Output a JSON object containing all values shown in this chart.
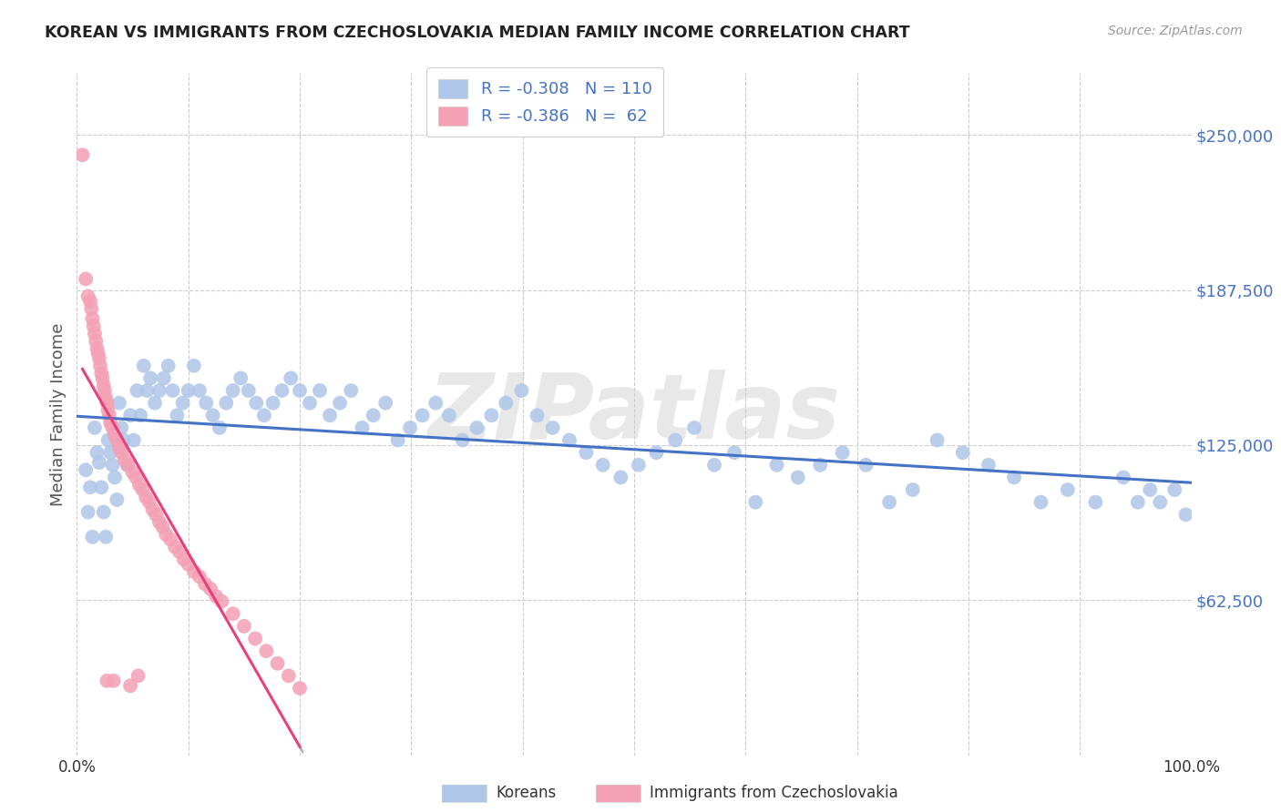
{
  "title": "KOREAN VS IMMIGRANTS FROM CZECHOSLOVAKIA MEDIAN FAMILY INCOME CORRELATION CHART",
  "source": "Source: ZipAtlas.com",
  "ylabel": "Median Family Income",
  "ytick_labels": [
    "$62,500",
    "$125,000",
    "$187,500",
    "$250,000"
  ],
  "ytick_values": [
    62500,
    125000,
    187500,
    250000
  ],
  "ymin": 0,
  "ymax": 275000,
  "xmin": 0.0,
  "xmax": 1.0,
  "watermark": "ZIPatlas",
  "korean_color": "#aec6e8",
  "czech_color": "#f4a0b5",
  "korean_line_color": "#4472c4",
  "czech_line_color": "#e8407a",
  "background_color": "#ffffff",
  "grid_color": "#cccccc",
  "title_color": "#222222",
  "axis_label_color": "#555555",
  "ytick_color": "#4472c4",
  "korean_x": [
    0.008,
    0.01,
    0.012,
    0.014,
    0.016,
    0.018,
    0.02,
    0.022,
    0.024,
    0.026,
    0.028,
    0.03,
    0.032,
    0.034,
    0.036,
    0.038,
    0.04,
    0.042,
    0.045,
    0.048,
    0.051,
    0.054,
    0.057,
    0.06,
    0.063,
    0.066,
    0.07,
    0.074,
    0.078,
    0.082,
    0.086,
    0.09,
    0.095,
    0.1,
    0.105,
    0.11,
    0.116,
    0.122,
    0.128,
    0.134,
    0.14,
    0.147,
    0.154,
    0.161,
    0.168,
    0.176,
    0.184,
    0.192,
    0.2,
    0.209,
    0.218,
    0.227,
    0.236,
    0.246,
    0.256,
    0.266,
    0.277,
    0.288,
    0.299,
    0.31,
    0.322,
    0.334,
    0.346,
    0.359,
    0.372,
    0.385,
    0.399,
    0.413,
    0.427,
    0.442,
    0.457,
    0.472,
    0.488,
    0.504,
    0.52,
    0.537,
    0.554,
    0.572,
    0.59,
    0.609,
    0.628,
    0.647,
    0.667,
    0.687,
    0.708,
    0.729,
    0.75,
    0.772,
    0.795,
    0.818,
    0.841,
    0.865,
    0.889,
    0.914,
    0.939,
    0.952,
    0.963,
    0.972,
    0.985,
    0.995
  ],
  "korean_y": [
    115000,
    98000,
    108000,
    88000,
    132000,
    122000,
    118000,
    108000,
    98000,
    88000,
    127000,
    122000,
    117000,
    112000,
    103000,
    142000,
    132000,
    127000,
    117000,
    137000,
    127000,
    147000,
    137000,
    157000,
    147000,
    152000,
    142000,
    147000,
    152000,
    157000,
    147000,
    137000,
    142000,
    147000,
    157000,
    147000,
    142000,
    137000,
    132000,
    142000,
    147000,
    152000,
    147000,
    142000,
    137000,
    142000,
    147000,
    152000,
    147000,
    142000,
    147000,
    137000,
    142000,
    147000,
    132000,
    137000,
    142000,
    127000,
    132000,
    137000,
    142000,
    137000,
    127000,
    132000,
    137000,
    142000,
    147000,
    137000,
    132000,
    127000,
    122000,
    117000,
    112000,
    117000,
    122000,
    127000,
    132000,
    117000,
    122000,
    102000,
    117000,
    112000,
    117000,
    122000,
    117000,
    102000,
    107000,
    127000,
    122000,
    117000,
    112000,
    102000,
    107000,
    102000,
    112000,
    102000,
    107000,
    102000,
    107000,
    97000
  ],
  "czech_x": [
    0.005,
    0.008,
    0.01,
    0.012,
    0.013,
    0.014,
    0.015,
    0.016,
    0.017,
    0.018,
    0.019,
    0.02,
    0.021,
    0.022,
    0.023,
    0.024,
    0.025,
    0.026,
    0.027,
    0.028,
    0.029,
    0.03,
    0.032,
    0.034,
    0.036,
    0.038,
    0.04,
    0.043,
    0.046,
    0.05,
    0.053,
    0.056,
    0.059,
    0.062,
    0.065,
    0.068,
    0.071,
    0.074,
    0.077,
    0.08,
    0.084,
    0.088,
    0.092,
    0.096,
    0.1,
    0.105,
    0.11,
    0.115,
    0.12,
    0.125,
    0.13,
    0.14,
    0.15,
    0.16,
    0.17,
    0.18,
    0.19,
    0.2,
    0.055,
    0.048,
    0.033,
    0.027
  ],
  "czech_y": [
    242000,
    192000,
    185000,
    183000,
    180000,
    176000,
    173000,
    170000,
    167000,
    164000,
    162000,
    160000,
    157000,
    154000,
    152000,
    149000,
    147000,
    144000,
    142000,
    139000,
    137000,
    134000,
    132000,
    129000,
    127000,
    124000,
    122000,
    119000,
    117000,
    114000,
    112000,
    109000,
    107000,
    104000,
    102000,
    99000,
    97000,
    94000,
    92000,
    89000,
    87000,
    84000,
    82000,
    79000,
    77000,
    74000,
    72000,
    69000,
    67000,
    64000,
    62000,
    57000,
    52000,
    47000,
    42000,
    37000,
    32000,
    27000,
    32000,
    28000,
    30000,
    30000
  ]
}
